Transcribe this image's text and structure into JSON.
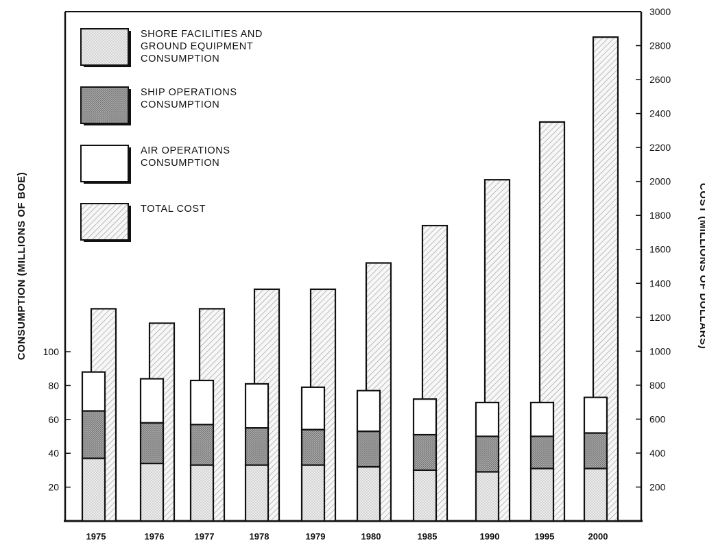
{
  "chart_data": {
    "type": "bar",
    "categories": [
      "1975",
      "1976",
      "1977",
      "1978",
      "1979",
      "1980",
      "1985",
      "1990",
      "1995",
      "2000"
    ],
    "series": [
      {
        "name": "SHORE FACILITIES AND GROUND EQUIPMENT CONSUMPTION",
        "axis": "left",
        "stack": "consumption",
        "values": [
          37,
          34,
          33,
          33,
          33,
          32,
          30,
          29,
          31,
          31
        ]
      },
      {
        "name": "SHIP OPERATIONS CONSUMPTION",
        "axis": "left",
        "stack": "consumption",
        "values": [
          28,
          24,
          24,
          22,
          21,
          21,
          21,
          21,
          19,
          21
        ]
      },
      {
        "name": "AIR OPERATIONS CONSUMPTION",
        "axis": "left",
        "stack": "consumption",
        "values": [
          23,
          26,
          26,
          26,
          25,
          24,
          21,
          20,
          20,
          21
        ]
      },
      {
        "name": "TOTAL COST",
        "axis": "right",
        "values": [
          1250,
          1165,
          1250,
          1365,
          1365,
          1520,
          1740,
          2010,
          2350,
          2850
        ]
      }
    ],
    "legend": [
      {
        "lines": [
          "SHORE FACILITIES AND",
          "GROUND EQUIPMENT",
          "CONSUMPTION"
        ],
        "pattern": "dots-light"
      },
      {
        "lines": [
          "SHIP OPERATIONS",
          "CONSUMPTION"
        ],
        "pattern": "dots-dark"
      },
      {
        "lines": [
          "AIR OPERATIONS",
          "CONSUMPTION"
        ],
        "pattern": "none"
      },
      {
        "lines": [
          "TOTAL COST"
        ],
        "pattern": "hatch"
      }
    ],
    "ylabel": "CONSUMPTION (MILLIONS OF BOE)",
    "y2label": "COST (MILLIONS OF DOLLARS)",
    "ylim": [
      0,
      100
    ],
    "yticks": [
      20,
      40,
      60,
      80,
      100
    ],
    "y2lim": [
      0,
      3000
    ],
    "y2ticks": [
      200,
      400,
      600,
      800,
      1000,
      1200,
      1400,
      1600,
      1800,
      2000,
      2200,
      2400,
      2600,
      2800,
      3000
    ],
    "legend_position": "top-left",
    "grid": false,
    "colors": {
      "ink": "#111111",
      "shore": "#e4e4e4",
      "ship": "#a9a9a9",
      "air": "#ffffff",
      "cost": "#f2f2f2"
    }
  }
}
